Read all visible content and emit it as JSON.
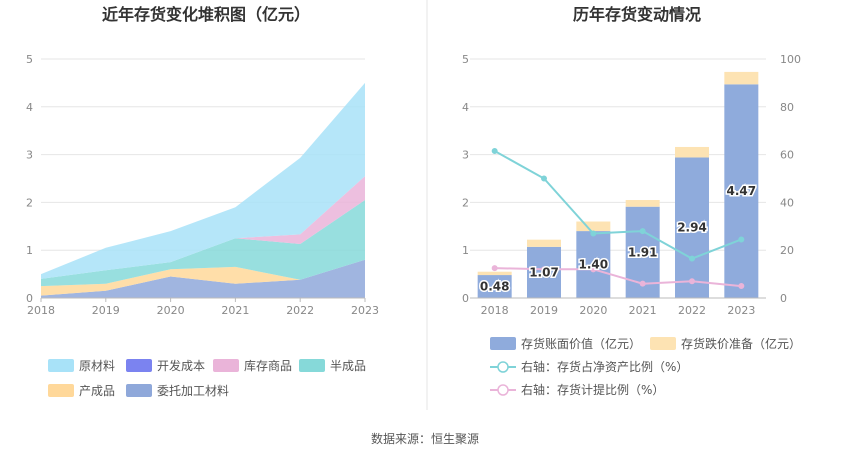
{
  "left_chart": {
    "title": "近年存货变化堆积图（亿元）",
    "legend": [
      {
        "label": "原材料",
        "color": "#a8e2f8"
      },
      {
        "label": "开发成本",
        "color": "#7b83f0"
      },
      {
        "label": "库存商品",
        "color": "#eab4d9"
      },
      {
        "label": "半成品",
        "color": "#86d9d9"
      },
      {
        "label": "产成品",
        "color": "#ffd89a"
      },
      {
        "label": "委托加工材料",
        "color": "#8fa8da"
      }
    ]
  },
  "right_chart": {
    "title": "历年存货变动情况",
    "legend": [
      {
        "label": "存货账面价值（亿元）",
        "color": "#8fabdc"
      },
      {
        "label": "存货跌价准备（亿元）",
        "color": "#fde3b3"
      },
      {
        "label": "右轴：存货占净资产比例（%）",
        "color": "#7fd3d8"
      },
      {
        "label": "右轴：存货计提比例（%）",
        "color": "#eab4d9"
      }
    ]
  },
  "source": "数据来源：恒生聚源",
  "chart_data": [
    {
      "type": "area",
      "title": "近年存货变化堆积图（亿元）",
      "x": [
        "2018",
        "2019",
        "2020",
        "2021",
        "2022",
        "2023"
      ],
      "ylim": [
        0,
        5
      ],
      "yticks": [
        0,
        1,
        2,
        3,
        4,
        5
      ],
      "stacked": true,
      "series": [
        {
          "name": "委托加工材料",
          "color": "#8fa8da",
          "values": [
            0.05,
            0.15,
            0.45,
            0.3,
            0.38,
            0.8
          ]
        },
        {
          "name": "产成品",
          "color": "#ffd89a",
          "values": [
            0.2,
            0.15,
            0.15,
            0.35,
            0.0,
            0.0
          ]
        },
        {
          "name": "半成品",
          "color": "#86d9d9",
          "values": [
            0.15,
            0.28,
            0.15,
            0.6,
            0.75,
            1.25
          ]
        },
        {
          "name": "库存商品",
          "color": "#eab4d9",
          "values": [
            0.0,
            0.0,
            0.0,
            0.0,
            0.2,
            0.5
          ]
        },
        {
          "name": "开发成本",
          "color": "#7b83f0",
          "values": [
            0.0,
            0.0,
            0.0,
            0.0,
            0.0,
            0.0
          ]
        },
        {
          "name": "原材料",
          "color": "#a8e2f8",
          "values": [
            0.1,
            0.47,
            0.65,
            0.65,
            1.6,
            1.95
          ]
        }
      ],
      "grid": true,
      "legend_position": "bottom"
    },
    {
      "type": "bar",
      "title": "历年存货变动情况",
      "categories": [
        "2018",
        "2019",
        "2020",
        "2021",
        "2022",
        "2023"
      ],
      "ylim": [
        0,
        5
      ],
      "yticks": [
        0,
        1,
        2,
        3,
        4,
        5
      ],
      "y2lim": [
        0,
        100
      ],
      "y2ticks": [
        0,
        20,
        40,
        60,
        80,
        100
      ],
      "stacked": true,
      "series": [
        {
          "name": "存货账面价值（亿元）",
          "type": "bar",
          "axis": "left",
          "color": "#8fabdc",
          "values": [
            0.48,
            1.07,
            1.4,
            1.91,
            2.94,
            4.47
          ],
          "labels": [
            "0.48",
            "1.07",
            "1.40",
            "1.91",
            "2.94",
            "4.47"
          ]
        },
        {
          "name": "存货跌价准备（亿元）",
          "type": "bar",
          "axis": "left",
          "color": "#fde3b3",
          "values": [
            0.07,
            0.15,
            0.2,
            0.14,
            0.22,
            0.26
          ]
        },
        {
          "name": "右轴：存货占净资产比例（%）",
          "type": "line",
          "axis": "right",
          "color": "#7fd3d8",
          "values": [
            61.5,
            50.0,
            27.0,
            28.0,
            16.5,
            24.5
          ]
        },
        {
          "name": "右轴：存货计提比例（%）",
          "type": "line",
          "axis": "right",
          "color": "#eab4d9",
          "values": [
            12.5,
            12.0,
            12.0,
            6.0,
            7.0,
            5.0
          ]
        }
      ],
      "grid": true,
      "legend_position": "bottom"
    }
  ]
}
